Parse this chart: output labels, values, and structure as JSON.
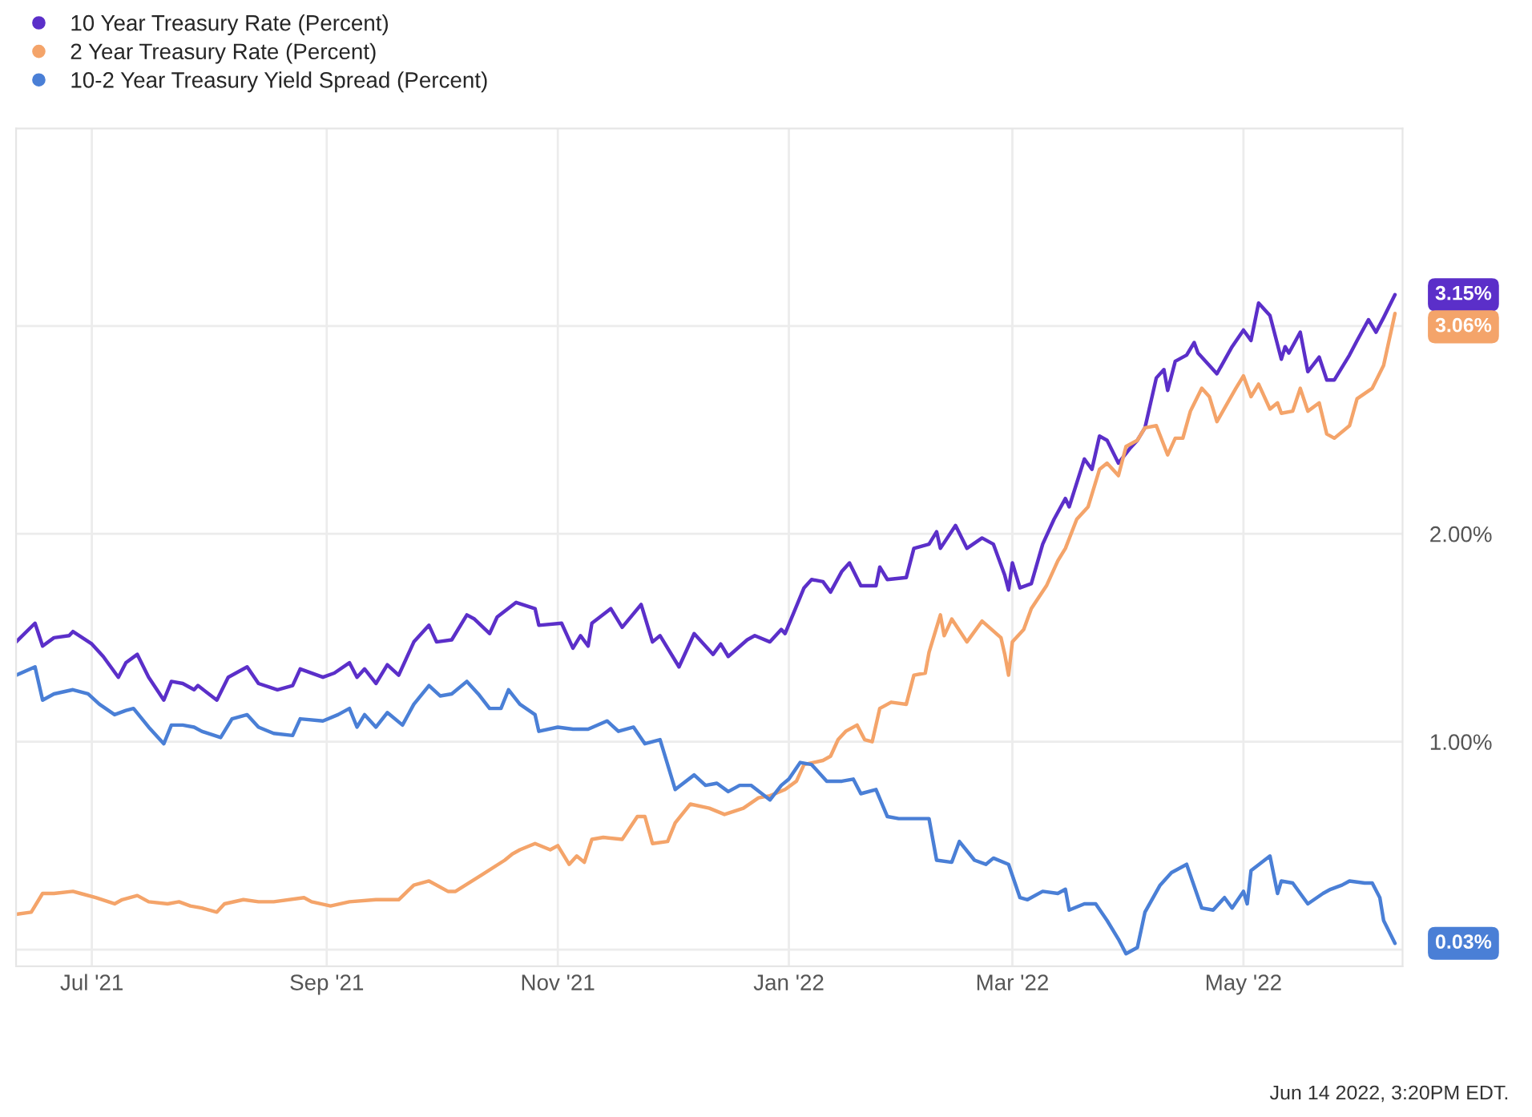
{
  "chart_data": {
    "type": "line",
    "grid": true,
    "legend": "top left",
    "marker": "none",
    "line_style": "solid",
    "xlim": [
      "2021-06-11",
      "2022-06-12"
    ],
    "xticks": [
      {
        "value": "2021-07-01",
        "label": "Jul '21"
      },
      {
        "value": "2021-09-01",
        "label": "Sep '21"
      },
      {
        "value": "2021-11-01",
        "label": "Nov '21"
      },
      {
        "value": "2022-01-01",
        "label": "Jan '22"
      },
      {
        "value": "2022-03-01",
        "label": "Mar '22"
      },
      {
        "value": "2022-05-01",
        "label": "May '22"
      }
    ],
    "ylim": [
      -0.08,
      3.95
    ],
    "yticks": [
      {
        "value": 0,
        "label": null
      },
      {
        "value": 1,
        "label": "1.00%"
      },
      {
        "value": 2,
        "label": "2.00%"
      },
      {
        "value": 3,
        "label": null
      }
    ],
    "series": [
      {
        "name": "10 Year Treasury Rate (Percent)",
        "color": "#5b2fc9",
        "x": [
          "2021-06-11",
          "2021-06-16",
          "2021-06-18",
          "2021-06-21",
          "2021-06-25",
          "2021-06-26",
          "2021-07-01",
          "2021-07-04",
          "2021-07-08",
          "2021-07-10",
          "2021-07-13",
          "2021-07-16",
          "2021-07-20",
          "2021-07-22",
          "2021-07-25",
          "2021-07-28",
          "2021-07-29",
          "2021-08-03",
          "2021-08-06",
          "2021-08-11",
          "2021-08-14",
          "2021-08-19",
          "2021-08-23",
          "2021-08-25",
          "2021-08-31",
          "2021-09-03",
          "2021-09-07",
          "2021-09-09",
          "2021-09-11",
          "2021-09-14",
          "2021-09-17",
          "2021-09-20",
          "2021-09-24",
          "2021-09-28",
          "2021-09-30",
          "2021-10-04",
          "2021-10-08",
          "2021-10-10",
          "2021-10-14",
          "2021-10-16",
          "2021-10-21",
          "2021-10-26",
          "2021-10-27",
          "2021-11-02",
          "2021-11-05",
          "2021-11-07",
          "2021-11-09",
          "2021-11-10",
          "2021-11-15",
          "2021-11-18",
          "2021-11-23",
          "2021-11-26",
          "2021-11-28",
          "2021-12-03",
          "2021-12-07",
          "2021-12-12",
          "2021-12-14",
          "2021-12-16",
          "2021-12-21",
          "2021-12-23",
          "2021-12-27",
          "2021-12-30",
          "2021-12-31",
          "2022-01-05",
          "2022-01-07",
          "2022-01-10",
          "2022-01-12",
          "2022-01-15",
          "2022-01-17",
          "2022-01-20",
          "2022-01-24",
          "2022-01-25",
          "2022-01-27",
          "2022-02-01",
          "2022-02-03",
          "2022-02-07",
          "2022-02-09",
          "2022-02-10",
          "2022-02-14",
          "2022-02-17",
          "2022-02-21",
          "2022-02-24",
          "2022-02-27",
          "2022-02-28",
          "2022-03-01",
          "2022-03-03",
          "2022-03-06",
          "2022-03-09",
          "2022-03-12",
          "2022-03-15",
          "2022-03-16",
          "2022-03-20",
          "2022-03-22",
          "2022-03-24",
          "2022-03-26",
          "2022-03-29",
          "2022-04-01",
          "2022-04-03",
          "2022-04-05",
          "2022-04-08",
          "2022-04-10",
          "2022-04-11",
          "2022-04-13",
          "2022-04-16",
          "2022-04-18",
          "2022-04-19",
          "2022-04-24",
          "2022-04-28",
          "2022-05-01",
          "2022-05-03",
          "2022-05-05",
          "2022-05-08",
          "2022-05-11",
          "2022-05-12",
          "2022-05-13",
          "2022-05-16",
          "2022-05-18",
          "2022-05-21",
          "2022-05-23",
          "2022-05-25",
          "2022-05-29",
          "2022-05-31",
          "2022-06-03",
          "2022-06-05",
          "2022-06-07",
          "2022-06-10"
        ],
        "values": [
          1.48,
          1.57,
          1.46,
          1.5,
          1.51,
          1.53,
          1.47,
          1.41,
          1.31,
          1.38,
          1.42,
          1.31,
          1.2,
          1.29,
          1.28,
          1.25,
          1.27,
          1.2,
          1.31,
          1.36,
          1.28,
          1.25,
          1.27,
          1.35,
          1.31,
          1.33,
          1.38,
          1.31,
          1.35,
          1.28,
          1.37,
          1.32,
          1.48,
          1.56,
          1.48,
          1.49,
          1.61,
          1.59,
          1.52,
          1.6,
          1.67,
          1.64,
          1.56,
          1.57,
          1.45,
          1.51,
          1.46,
          1.57,
          1.64,
          1.55,
          1.66,
          1.48,
          1.51,
          1.36,
          1.52,
          1.42,
          1.47,
          1.41,
          1.49,
          1.51,
          1.48,
          1.54,
          1.52,
          1.74,
          1.78,
          1.77,
          1.72,
          1.82,
          1.86,
          1.75,
          1.75,
          1.84,
          1.78,
          1.79,
          1.93,
          1.95,
          2.01,
          1.93,
          2.04,
          1.93,
          1.98,
          1.95,
          1.8,
          1.73,
          1.86,
          1.74,
          1.76,
          1.95,
          2.07,
          2.17,
          2.13,
          2.36,
          2.31,
          2.47,
          2.45,
          2.34,
          2.41,
          2.45,
          2.51,
          2.75,
          2.79,
          2.69,
          2.83,
          2.86,
          2.92,
          2.87,
          2.77,
          2.9,
          2.98,
          2.93,
          3.11,
          3.05,
          2.84,
          2.9,
          2.87,
          2.97,
          2.78,
          2.85,
          2.74,
          2.74,
          2.86,
          2.93,
          3.03,
          2.97,
          3.04,
          3.15
        ]
      },
      {
        "name": "2 Year Treasury Rate (Percent)",
        "color": "#f4a46a",
        "x": [
          "2021-06-11",
          "2021-06-15",
          "2021-06-18",
          "2021-06-21",
          "2021-06-26",
          "2021-06-28",
          "2021-07-02",
          "2021-07-07",
          "2021-07-09",
          "2021-07-13",
          "2021-07-16",
          "2021-07-21",
          "2021-07-24",
          "2021-07-27",
          "2021-07-30",
          "2021-08-03",
          "2021-08-05",
          "2021-08-10",
          "2021-08-14",
          "2021-08-18",
          "2021-08-26",
          "2021-08-28",
          "2021-09-02",
          "2021-09-07",
          "2021-09-14",
          "2021-09-20",
          "2021-09-24",
          "2021-09-28",
          "2021-10-03",
          "2021-10-05",
          "2021-10-12",
          "2021-10-18",
          "2021-10-20",
          "2021-10-22",
          "2021-10-26",
          "2021-10-30",
          "2021-11-01",
          "2021-11-04",
          "2021-11-06",
          "2021-11-08",
          "2021-11-10",
          "2021-11-13",
          "2021-11-18",
          "2021-11-22",
          "2021-11-24",
          "2021-11-26",
          "2021-11-30",
          "2021-12-02",
          "2021-12-06",
          "2021-12-11",
          "2021-12-15",
          "2021-12-20",
          "2021-12-24",
          "2021-12-27",
          "2021-12-31",
          "2022-01-03",
          "2022-01-05",
          "2022-01-10",
          "2022-01-12",
          "2022-01-14",
          "2022-01-16",
          "2022-01-19",
          "2022-01-21",
          "2022-01-23",
          "2022-01-25",
          "2022-01-28",
          "2022-02-01",
          "2022-02-03",
          "2022-02-06",
          "2022-02-07",
          "2022-02-10",
          "2022-02-11",
          "2022-02-13",
          "2022-02-17",
          "2022-02-21",
          "2022-02-26",
          "2022-02-27",
          "2022-02-28",
          "2022-03-01",
          "2022-03-04",
          "2022-03-06",
          "2022-03-10",
          "2022-03-13",
          "2022-03-15",
          "2022-03-18",
          "2022-03-21",
          "2022-03-24",
          "2022-03-26",
          "2022-03-29",
          "2022-03-31",
          "2022-04-03",
          "2022-04-05",
          "2022-04-08",
          "2022-04-11",
          "2022-04-13",
          "2022-04-15",
          "2022-04-17",
          "2022-04-20",
          "2022-04-22",
          "2022-04-24",
          "2022-04-29",
          "2022-05-01",
          "2022-05-03",
          "2022-05-05",
          "2022-05-08",
          "2022-05-10",
          "2022-05-11",
          "2022-05-14",
          "2022-05-16",
          "2022-05-18",
          "2022-05-21",
          "2022-05-23",
          "2022-05-25",
          "2022-05-29",
          "2022-05-31",
          "2022-06-04",
          "2022-06-07",
          "2022-06-10"
        ],
        "values": [
          0.17,
          0.18,
          0.27,
          0.27,
          0.28,
          0.27,
          0.25,
          0.22,
          0.24,
          0.26,
          0.23,
          0.22,
          0.23,
          0.21,
          0.2,
          0.18,
          0.22,
          0.24,
          0.23,
          0.23,
          0.25,
          0.23,
          0.21,
          0.23,
          0.24,
          0.24,
          0.31,
          0.33,
          0.28,
          0.28,
          0.36,
          0.43,
          0.46,
          0.48,
          0.51,
          0.48,
          0.5,
          0.41,
          0.45,
          0.42,
          0.53,
          0.54,
          0.53,
          0.64,
          0.64,
          0.51,
          0.52,
          0.61,
          0.7,
          0.68,
          0.65,
          0.68,
          0.73,
          0.74,
          0.77,
          0.81,
          0.89,
          0.91,
          0.93,
          1.01,
          1.05,
          1.08,
          1.01,
          1.0,
          1.16,
          1.19,
          1.18,
          1.32,
          1.33,
          1.43,
          1.61,
          1.51,
          1.59,
          1.48,
          1.58,
          1.5,
          1.42,
          1.32,
          1.48,
          1.54,
          1.64,
          1.75,
          1.87,
          1.93,
          2.07,
          2.13,
          2.31,
          2.34,
          2.28,
          2.42,
          2.45,
          2.51,
          2.52,
          2.38,
          2.46,
          2.46,
          2.59,
          2.7,
          2.66,
          2.54,
          2.7,
          2.76,
          2.66,
          2.72,
          2.6,
          2.63,
          2.58,
          2.59,
          2.7,
          2.59,
          2.63,
          2.48,
          2.46,
          2.52,
          2.65,
          2.7,
          2.81,
          3.06
        ]
      },
      {
        "name": "10-2 Year Treasury Yield Spread (Percent)",
        "color": "#4a7fd6",
        "x": [
          "2021-06-11",
          "2021-06-16",
          "2021-06-18",
          "2021-06-21",
          "2021-06-26",
          "2021-06-30",
          "2021-07-03",
          "2021-07-07",
          "2021-07-10",
          "2021-07-12",
          "2021-07-16",
          "2021-07-20",
          "2021-07-22",
          "2021-07-25",
          "2021-07-28",
          "2021-07-30",
          "2021-08-04",
          "2021-08-07",
          "2021-08-11",
          "2021-08-14",
          "2021-08-18",
          "2021-08-23",
          "2021-08-25",
          "2021-08-31",
          "2021-09-04",
          "2021-09-07",
          "2021-09-09",
          "2021-09-11",
          "2021-09-14",
          "2021-09-17",
          "2021-09-21",
          "2021-09-24",
          "2021-09-28",
          "2021-10-01",
          "2021-10-04",
          "2021-10-08",
          "2021-10-11",
          "2021-10-14",
          "2021-10-17",
          "2021-10-19",
          "2021-10-22",
          "2021-10-26",
          "2021-10-27",
          "2021-11-01",
          "2021-11-05",
          "2021-11-09",
          "2021-11-14",
          "2021-11-17",
          "2021-11-21",
          "2021-11-24",
          "2021-11-28",
          "2021-12-02",
          "2021-12-07",
          "2021-12-10",
          "2021-12-13",
          "2021-12-16",
          "2021-12-19",
          "2021-12-22",
          "2021-12-27",
          "2021-12-30",
          "2022-01-01",
          "2022-01-04",
          "2022-01-07",
          "2022-01-11",
          "2022-01-15",
          "2022-01-18",
          "2022-01-20",
          "2022-01-24",
          "2022-01-27",
          "2022-01-30",
          "2022-02-04",
          "2022-02-07",
          "2022-02-09",
          "2022-02-13",
          "2022-02-15",
          "2022-02-19",
          "2022-02-22",
          "2022-02-24",
          "2022-02-28",
          "2022-03-03",
          "2022-03-05",
          "2022-03-09",
          "2022-03-13",
          "2022-03-15",
          "2022-03-16",
          "2022-03-20",
          "2022-03-23",
          "2022-03-26",
          "2022-03-29",
          "2022-03-31",
          "2022-04-03",
          "2022-04-05",
          "2022-04-09",
          "2022-04-12",
          "2022-04-16",
          "2022-04-20",
          "2022-04-23",
          "2022-04-26",
          "2022-04-28",
          "2022-05-01",
          "2022-05-02",
          "2022-05-03",
          "2022-05-08",
          "2022-05-10",
          "2022-05-11",
          "2022-05-14",
          "2022-05-18",
          "2022-05-22",
          "2022-05-24",
          "2022-05-27",
          "2022-05-29",
          "2022-06-02",
          "2022-06-04",
          "2022-06-06",
          "2022-06-07",
          "2022-06-10"
        ],
        "values": [
          1.32,
          1.36,
          1.2,
          1.23,
          1.25,
          1.23,
          1.18,
          1.13,
          1.15,
          1.16,
          1.07,
          0.99,
          1.08,
          1.08,
          1.07,
          1.05,
          1.02,
          1.11,
          1.13,
          1.07,
          1.04,
          1.03,
          1.11,
          1.1,
          1.13,
          1.16,
          1.07,
          1.13,
          1.07,
          1.14,
          1.08,
          1.18,
          1.27,
          1.22,
          1.23,
          1.29,
          1.23,
          1.16,
          1.16,
          1.25,
          1.18,
          1.13,
          1.05,
          1.07,
          1.06,
          1.06,
          1.1,
          1.05,
          1.07,
          0.99,
          1.01,
          0.77,
          0.84,
          0.79,
          0.8,
          0.76,
          0.79,
          0.79,
          0.72,
          0.79,
          0.82,
          0.9,
          0.89,
          0.81,
          0.81,
          0.82,
          0.75,
          0.77,
          0.64,
          0.63,
          0.63,
          0.63,
          0.43,
          0.42,
          0.52,
          0.43,
          0.41,
          0.44,
          0.41,
          0.25,
          0.24,
          0.28,
          0.27,
          0.29,
          0.19,
          0.22,
          0.22,
          0.14,
          0.05,
          -0.02,
          0.01,
          0.18,
          0.31,
          0.37,
          0.41,
          0.2,
          0.19,
          0.25,
          0.2,
          0.28,
          0.22,
          0.38,
          0.45,
          0.27,
          0.33,
          0.32,
          0.22,
          0.27,
          0.29,
          0.31,
          0.33,
          0.32,
          0.32,
          0.25,
          0.14,
          0.03
        ]
      }
    ],
    "annotations": [
      {
        "text": "3.15%",
        "x": "2022-06-10",
        "y": 3.15
      },
      {
        "text": "3.06%",
        "x": "2022-06-10",
        "y": 3.06
      },
      {
        "text": "0.03%",
        "x": "2022-06-10",
        "y": 0.03
      },
      "Jun 14 2022, 3:20PM EDT."
    ]
  }
}
